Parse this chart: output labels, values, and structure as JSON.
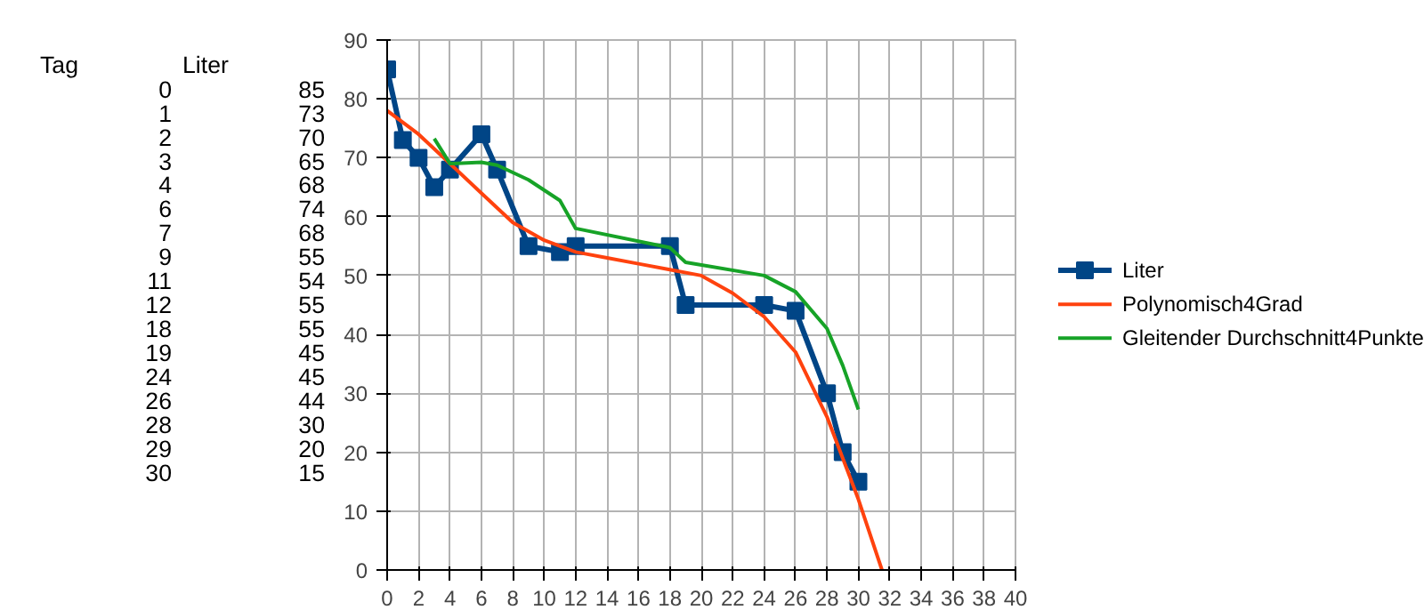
{
  "chart_data": [
    {
      "type": "other",
      "annotations": [
        "Tag",
        "Liter",
        "0",
        "85",
        "1",
        "73",
        "2",
        "70",
        "3",
        "65",
        "4",
        "68",
        "6",
        "74",
        "7",
        "68",
        "9",
        "55",
        "11",
        "54",
        "12",
        "55",
        "18",
        "55",
        "19",
        "45",
        "24",
        "45",
        "26",
        "44",
        "28",
        "30",
        "29",
        "20",
        "30",
        "15"
      ]
    },
    {
      "type": "line",
      "x": [
        0,
        1,
        2,
        3,
        4,
        6,
        7,
        9,
        11,
        12,
        18,
        19,
        24,
        26,
        28,
        29,
        30
      ],
      "series": [
        {
          "name": "Liter",
          "color": "#004586",
          "values": [
            85,
            73,
            70,
            65,
            68,
            74,
            68,
            55,
            54,
            55,
            55,
            45,
            45,
            44,
            30,
            20,
            15
          ],
          "marker": "square"
        },
        {
          "name": "Polynomisch4Grad",
          "color": "#ff420e",
          "x": [
            0,
            2,
            4,
            6,
            8,
            10,
            12,
            14,
            16,
            18,
            20,
            22,
            24,
            26,
            28,
            30,
            31.5
          ],
          "values": [
            78,
            74,
            69,
            64,
            59,
            56,
            54,
            53,
            52,
            51,
            50,
            47,
            43,
            37,
            26,
            12,
            0
          ],
          "marker": "none"
        },
        {
          "name": "Gleitender Durchschnitt4Punkte",
          "color": "#17a327",
          "x": [
            3,
            4,
            6,
            7,
            9,
            11,
            12,
            18,
            19,
            24,
            26,
            28,
            29,
            30
          ],
          "values": [
            73.25,
            69,
            69.25,
            68.75,
            66.25,
            62.75,
            58,
            54.75,
            52.25,
            50,
            47.25,
            41,
            34.75,
            27.25
          ],
          "marker": "none"
        }
      ],
      "xlim": [
        0,
        40
      ],
      "xticks": [
        0,
        2,
        4,
        6,
        8,
        10,
        12,
        14,
        16,
        18,
        20,
        22,
        24,
        26,
        28,
        30,
        32,
        34,
        36,
        38,
        40
      ],
      "ylim": [
        0,
        90
      ],
      "yticks": [
        0,
        10,
        20,
        30,
        40,
        50,
        60,
        70,
        80,
        90
      ],
      "grid": true,
      "legend": "right",
      "line_style": "solid"
    }
  ]
}
